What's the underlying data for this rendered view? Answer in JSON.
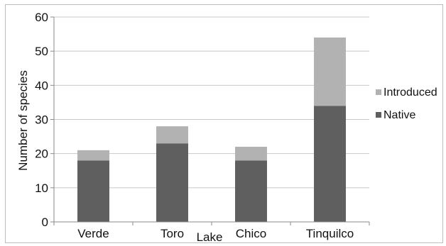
{
  "chart_data": {
    "type": "bar",
    "stacked": true,
    "categories": [
      "Verde",
      "Toro",
      "Chico",
      "Tinquilco"
    ],
    "series": [
      {
        "name": "Native",
        "values": [
          18,
          23,
          18,
          34
        ],
        "color": "#5f5f5f"
      },
      {
        "name": "Introduced",
        "values": [
          3,
          5,
          4,
          20
        ],
        "color": "#b2b2b2"
      }
    ],
    "xlabel": "Lake",
    "ylabel": "Number of species",
    "ylim": [
      0,
      60
    ],
    "yticks": [
      0,
      10,
      20,
      30,
      40,
      50,
      60
    ],
    "grid": true,
    "legend_position": "right"
  }
}
